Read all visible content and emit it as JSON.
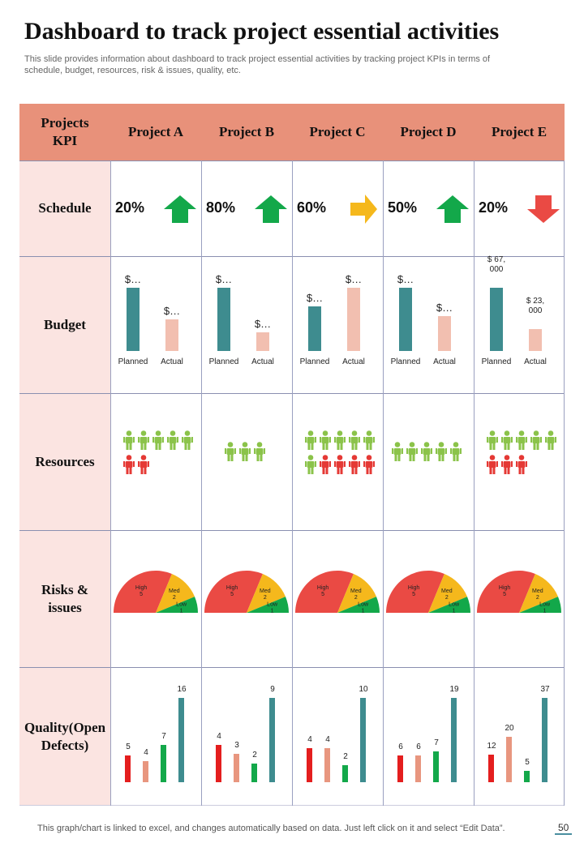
{
  "title": "Dashboard to track project essential activities",
  "subtitle": "This slide provides information about dashboard to track project essential activities by tracking project KPIs in terms of schedule, budget, resources, risk & issues, quality, etc.",
  "header_label": "Projects KPI",
  "row_labels": [
    "Schedule",
    "Budget",
    "Resources",
    "Risks & issues",
    "Quality(Open Defects)"
  ],
  "colors": {
    "header": "#e8917a",
    "row_bg": "#fbe4e1",
    "up": "#13a84a",
    "side": "#f5b81c",
    "down": "#ea4a44",
    "teal": "#3e8c8f",
    "peach": "#f2bfb0",
    "green_person": "#8bc34a",
    "red_person": "#e53935",
    "high": "#ea4a44",
    "med": "#f5b81c",
    "low": "#13a84a",
    "q_red": "#e41e1e",
    "q_peach": "#e8967f",
    "q_green": "#13a84a",
    "q_teal": "#3e8c8f"
  },
  "chart_data": {
    "type": "table",
    "title": "Dashboard to track project essential activities",
    "projects": [
      {
        "name": "Project A",
        "schedule_pct": "20%",
        "schedule_trend": "up",
        "budget": {
          "planned_label": "$…",
          "actual_label": "$…",
          "planned": 100,
          "actual": 50,
          "x_labels": [
            "Planned",
            "Actual"
          ]
        },
        "resources": {
          "green": 5,
          "red": 2
        },
        "risks": {
          "high": 5,
          "med": 2,
          "low": 1,
          "labels": [
            "High 5",
            "Med 2",
            "Low 1"
          ]
        },
        "quality": [
          5,
          4,
          7,
          16
        ]
      },
      {
        "name": "Project B",
        "schedule_pct": "80%",
        "schedule_trend": "up",
        "budget": {
          "planned_label": "$…",
          "actual_label": "$…",
          "planned": 100,
          "actual": 30,
          "x_labels": [
            "Planned",
            "Actual"
          ]
        },
        "resources": {
          "green": 3,
          "red": 0
        },
        "risks": {
          "high": 5,
          "med": 2,
          "low": 1,
          "labels": [
            "High 5",
            "Med 2",
            "Low 1"
          ]
        },
        "quality": [
          4,
          3,
          2,
          9
        ]
      },
      {
        "name": "Project C",
        "schedule_pct": "60%",
        "schedule_trend": "right",
        "budget": {
          "planned_label": "$…",
          "actual_label": "$…",
          "planned": 70,
          "actual": 100,
          "x_labels": [
            "Planned",
            "Actual"
          ]
        },
        "resources": {
          "green": 6,
          "red": 4
        },
        "risks": {
          "high": 5,
          "med": 2,
          "low": 1,
          "labels": [
            "High 5",
            "Med 2",
            "Low 1"
          ]
        },
        "quality": [
          4,
          4,
          2,
          10
        ]
      },
      {
        "name": "Project D",
        "schedule_pct": "50%",
        "schedule_trend": "up",
        "budget": {
          "planned_label": "$…",
          "actual_label": "$…",
          "planned": 100,
          "actual": 55,
          "x_labels": [
            "Planned",
            "Actual"
          ]
        },
        "resources": {
          "green": 5,
          "red": 0
        },
        "risks": {
          "high": 5,
          "med": 2,
          "low": 1,
          "labels": [
            "High 5",
            "Med 2",
            "Low 1"
          ]
        },
        "quality": [
          6,
          6,
          7,
          19
        ]
      },
      {
        "name": "Project E",
        "schedule_pct": "20%",
        "schedule_trend": "down",
        "budget": {
          "planned_label": "$ 67, 000",
          "actual_label": "$ 23, 000",
          "planned": 67000,
          "actual": 23000,
          "x_labels": [
            "Planned",
            "Actual"
          ]
        },
        "resources": {
          "green": 5,
          "red": 3
        },
        "risks": {
          "high": 5,
          "med": 2,
          "low": 1,
          "labels": [
            "High 5",
            "Med 2",
            "Low 1"
          ]
        },
        "quality": [
          12,
          20,
          5,
          37
        ]
      }
    ]
  },
  "footer": "This graph/chart is linked to excel,  and changes automatically based on data. Just left click on it and select “Edit Data”.",
  "page_number": "50"
}
